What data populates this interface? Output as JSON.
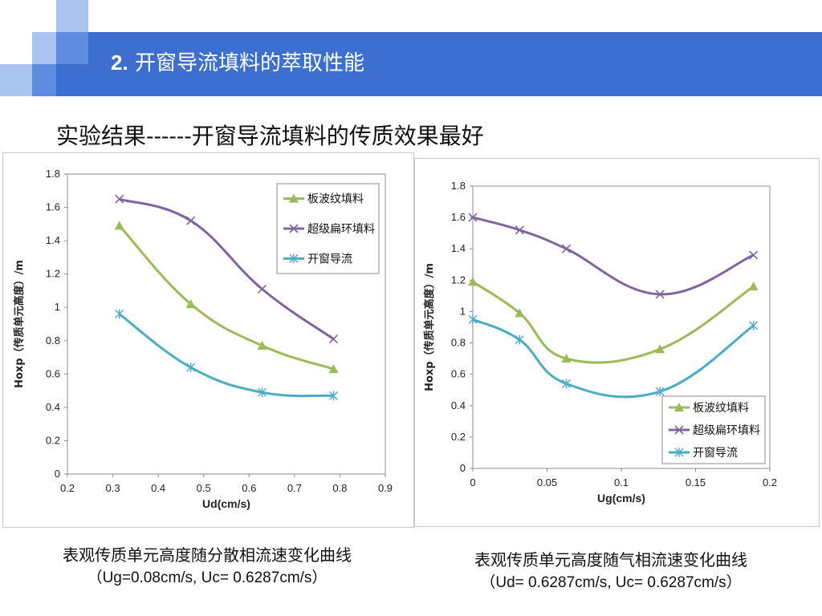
{
  "slide": {
    "title_number": "2.",
    "title_text": "开窗导流填料的萃取性能",
    "subtitle": "实验结果------开窗导流填料的传质效果最好",
    "colors": {
      "header": "#3c6fcf",
      "deco_light": "#a9c4ef",
      "deco_mid": "#5e8de0"
    }
  },
  "captions": [
    {
      "line1": "表观传质单元高度随分散相流速变化曲线",
      "line2": "（Ug=0.08cm/s, Uc= 0.6287cm/s）"
    },
    {
      "line1": "表观传质单元高度随气相流速变化曲线",
      "line2": "（Ud= 0.6287cm/s, Uc= 0.6287cm/s）"
    }
  ],
  "chart_data": [
    {
      "type": "line",
      "xlabel": "Ud(cm/s)",
      "ylabel": "Hoxp（传质单元高度）/m",
      "xlim": [
        0.2,
        0.9
      ],
      "ylim": [
        0,
        1.8
      ],
      "xticks": [
        "0.2",
        "0.3",
        "0.4",
        "0.5",
        "0.6",
        "0.7",
        "0.8",
        "0.9"
      ],
      "yticks": [
        "0",
        "0.2",
        "0.4",
        "0.6",
        "0.8",
        "1",
        "1.2",
        "1.4",
        "1.6",
        "1.8"
      ],
      "legend_position": "top-right",
      "series": [
        {
          "name": "板波纹填料",
          "color": "#9bbb59",
          "marker": "triangle",
          "x": [
            0.3144,
            0.4716,
            0.6287,
            0.786
          ],
          "y": [
            1.49,
            1.02,
            0.77,
            0.63
          ]
        },
        {
          "name": "超级扁环填料",
          "color": "#8064a2",
          "marker": "x",
          "x": [
            0.3144,
            0.4716,
            0.6287,
            0.786
          ],
          "y": [
            1.65,
            1.52,
            1.11,
            0.81
          ]
        },
        {
          "name": "开窗导流",
          "color": "#4bacc6",
          "marker": "star",
          "x": [
            0.3144,
            0.4716,
            0.6287,
            0.786
          ],
          "y": [
            0.96,
            0.64,
            0.49,
            0.47
          ]
        }
      ]
    },
    {
      "type": "line",
      "xlabel": "Ug(cm/s)",
      "ylabel": "Hoxp（传质单元高度）/m",
      "xlim": [
        0,
        0.2
      ],
      "ylim": [
        0,
        1.8
      ],
      "xticks": [
        "0",
        "0.05",
        "0.1",
        "0.15",
        "0.2"
      ],
      "yticks": [
        "0",
        "0.2",
        "0.4",
        "0.6",
        "0.8",
        "1",
        "1.2",
        "1.4",
        "1.6",
        "1.8"
      ],
      "legend_position": "bottom-right",
      "series": [
        {
          "name": "板波纹填料",
          "color": "#9bbb59",
          "marker": "triangle",
          "x": [
            0,
            0.0315,
            0.063,
            0.126,
            0.189
          ],
          "y": [
            1.19,
            0.99,
            0.7,
            0.76,
            1.16
          ]
        },
        {
          "name": "超级扁环填料",
          "color": "#8064a2",
          "marker": "x",
          "x": [
            0,
            0.0315,
            0.063,
            0.126,
            0.189
          ],
          "y": [
            1.6,
            1.52,
            1.4,
            1.11,
            1.36
          ]
        },
        {
          "name": "开窗导流",
          "color": "#4bacc6",
          "marker": "star",
          "x": [
            0,
            0.0315,
            0.063,
            0.126,
            0.189
          ],
          "y": [
            0.95,
            0.82,
            0.54,
            0.49,
            0.91
          ]
        }
      ]
    }
  ]
}
